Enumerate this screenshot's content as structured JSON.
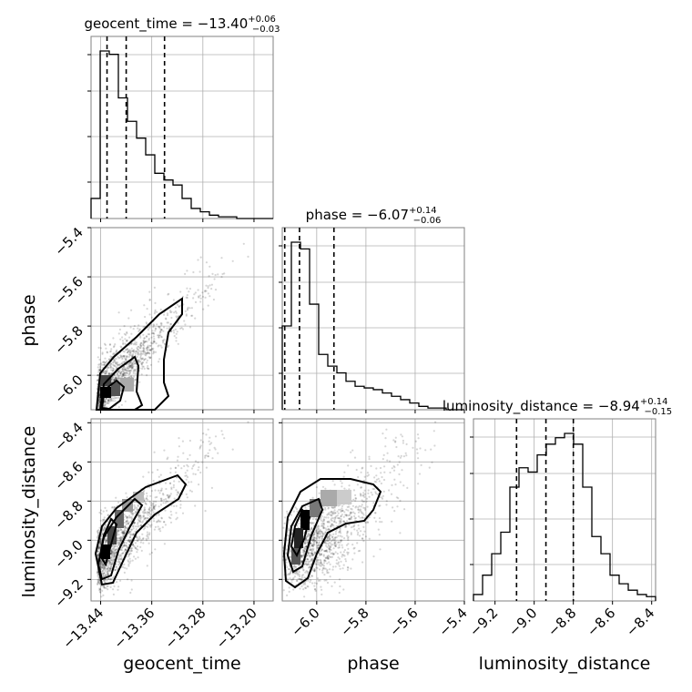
{
  "chart_data": {
    "type": "corner",
    "parameters": [
      "geocent_time",
      "phase",
      "luminosity_distance"
    ],
    "axis_labels": {
      "x": [
        "geocent_time",
        "phase",
        "luminosity_distance"
      ],
      "y": [
        "phase",
        "luminosity_distance"
      ]
    },
    "ranges": {
      "geocent_time": [
        -13.455,
        -13.17
      ],
      "phase": [
        -6.14,
        -5.4
      ],
      "luminosity_distance": [
        -9.31,
        -8.38
      ]
    },
    "ticks": {
      "geocent_time": [
        -13.44,
        -13.36,
        -13.28,
        -13.2
      ],
      "phase": [
        -6.0,
        -5.8,
        -5.6,
        -5.4
      ],
      "luminosity_distance": [
        -9.2,
        -9.0,
        -8.8,
        -8.6,
        -8.4
      ]
    },
    "tick_labels": {
      "geocent_time": [
        "−13.44",
        "−13.36",
        "−13.28",
        "−13.20"
      ],
      "phase": [
        "−6.0",
        "−5.8",
        "−5.6",
        "−5.4"
      ],
      "phase_y": [
        "−6.0",
        "−5.8",
        "−5.6",
        "−5.4"
      ],
      "luminosity_distance": [
        "−9.2",
        "−9.0",
        "−8.8",
        "−8.6",
        "−8.4"
      ]
    },
    "titles": [
      {
        "param": "geocent_time",
        "prefix": "geocent_time = −13.40",
        "plus": "+0.06",
        "minus": "−0.03"
      },
      {
        "param": "phase",
        "prefix": "phase = −6.07",
        "plus": "+0.14",
        "minus": "−0.06"
      },
      {
        "param": "luminosity_distance",
        "prefix": "luminosity_distance = −8.94",
        "plus": "+0.14",
        "minus": "−0.15"
      }
    ],
    "quantiles": {
      "geocent_time": [
        -13.43,
        -13.4,
        -13.34
      ],
      "phase": [
        -6.13,
        -6.07,
        -5.93
      ],
      "luminosity_distance": [
        -9.09,
        -8.94,
        -8.8
      ]
    },
    "histograms": {
      "geocent_time": {
        "range": [
          -13.455,
          -13.17
        ],
        "counts": [
          12,
          100,
          98,
          72,
          58,
          48,
          38,
          27,
          23,
          20,
          12,
          6,
          4,
          2,
          1,
          1,
          0,
          0,
          0,
          0
        ]
      },
      "phase": {
        "range": [
          -6.14,
          -5.4
        ],
        "counts": [
          50,
          100,
          96,
          63,
          33,
          26,
          22,
          17,
          14,
          13,
          12,
          10,
          8,
          6,
          4,
          2,
          1,
          1,
          0,
          0
        ]
      },
      "luminosity_distance": {
        "range": [
          -9.31,
          -8.38
        ],
        "counts": [
          3,
          12,
          22,
          32,
          53,
          62,
          60,
          68,
          73,
          76,
          78,
          73,
          53,
          30,
          22,
          12,
          8,
          5,
          3,
          2
        ]
      }
    },
    "grid": true
  }
}
